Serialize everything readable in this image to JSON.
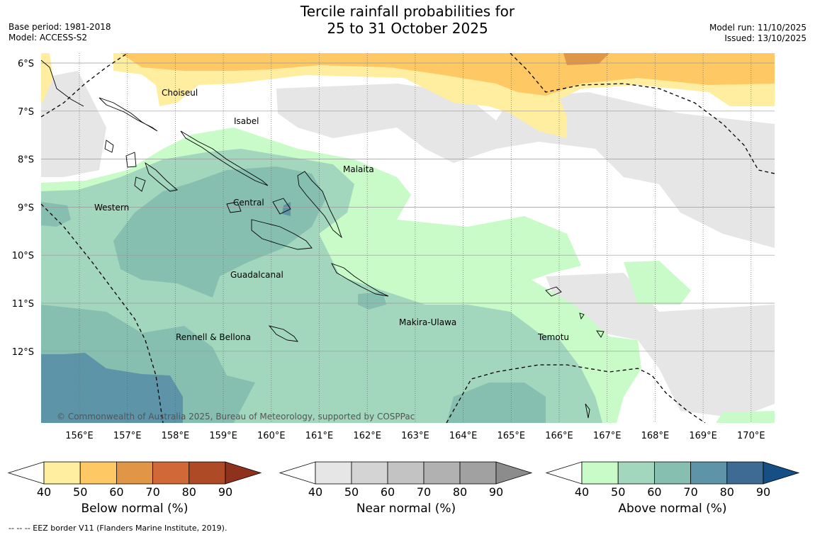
{
  "title": {
    "line1": "Tercile rainfall probabilities for",
    "line2": "25 to 31 October 2025"
  },
  "meta_left": {
    "base_period": "Base period: 1981-2018",
    "model": "Model: ACCESS-S2"
  },
  "meta_right": {
    "model_run": "Model run: 11/10/2025",
    "issued": "Issued: 13/10/2025"
  },
  "map": {
    "lat_labels": [
      "6°S",
      "7°S",
      "8°S",
      "9°S",
      "10°S",
      "11°S",
      "12°S"
    ],
    "lon_labels": [
      "156°E",
      "157°E",
      "158°E",
      "159°E",
      "160°E",
      "161°E",
      "162°E",
      "163°E",
      "164°E",
      "165°E",
      "166°E",
      "167°E",
      "168°E",
      "169°E",
      "170°E"
    ],
    "regions": [
      "Choiseul",
      "Isabel",
      "Malaita",
      "Western",
      "Central",
      "Guadalcanal",
      "Makira-Ulawa",
      "Rennell & Bellona",
      "Temotu"
    ],
    "copyright": "© Commonwealth of Australia 2025, Bureau of Meteorology, supported by COSPPac",
    "colors": {
      "ocean": "#ffffff",
      "grid": "#9a9a9a",
      "coast": "#000000"
    }
  },
  "legends": [
    {
      "title": "Below normal (%)",
      "ticks": [
        "40",
        "50",
        "60",
        "70",
        "80",
        "90"
      ],
      "colors": [
        "#ffffff",
        "#ffeda0",
        "#fec965",
        "#e19547",
        "#d06837",
        "#ae4a26",
        "#8f321d"
      ]
    },
    {
      "title": "Near normal (%)",
      "ticks": [
        "40",
        "50",
        "60",
        "70",
        "80",
        "90"
      ],
      "colors": [
        "#ffffff",
        "#e6e6e6",
        "#d4d4d4",
        "#c3c3c3",
        "#b1b1b1",
        "#a1a1a1",
        "#8c8c8c"
      ]
    },
    {
      "title": "Above normal (%)",
      "ticks": [
        "40",
        "50",
        "60",
        "70",
        "80",
        "90"
      ],
      "colors": [
        "#ffffff",
        "#c8fbc8",
        "#a2d6bd",
        "#86bfb0",
        "#5e94a8",
        "#3e6b94",
        "#154f85"
      ]
    }
  ],
  "footer": "-- -- -- EEZ border V11 (Flanders Marine Institute, 2019)."
}
